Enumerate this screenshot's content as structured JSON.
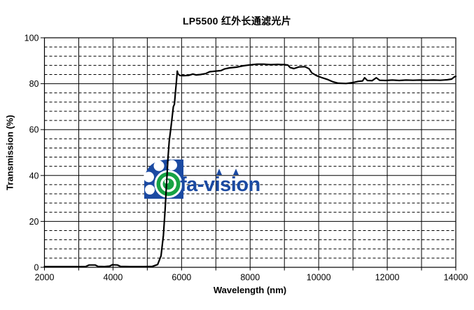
{
  "page": {
    "background": "#ffffff"
  },
  "watermark": {
    "text": "fa-vision",
    "blue": "#1B4AA2",
    "green": "#17A344"
  },
  "chart_data": {
    "type": "line",
    "title": "LP5500 红外长通滤光片",
    "xlabel": "Wavelength (nm)",
    "ylabel": "Transmission (%)",
    "xlim": [
      2000,
      14000
    ],
    "ylim": [
      0,
      100
    ],
    "x_major_ticks": [
      2000,
      4000,
      6000,
      8000,
      10000,
      12000,
      14000
    ],
    "y_major_ticks": [
      0,
      20,
      40,
      60,
      80,
      100
    ],
    "grid": {
      "x_minor_step": 1000,
      "y_minor_step": 4,
      "y_minor_style": "dashed",
      "x_style": "solid",
      "color": "#000000"
    },
    "line_color": "#000000",
    "series": [
      {
        "name": "Transmission",
        "points": [
          [
            2000,
            0.3
          ],
          [
            2500,
            0.3
          ],
          [
            3000,
            0.3
          ],
          [
            3200,
            0.3
          ],
          [
            3300,
            1.0
          ],
          [
            3480,
            1.0
          ],
          [
            3560,
            0.4
          ],
          [
            3750,
            0.3
          ],
          [
            3900,
            0.5
          ],
          [
            3980,
            1.1
          ],
          [
            4130,
            1.0
          ],
          [
            4220,
            0.4
          ],
          [
            4500,
            0.3
          ],
          [
            4900,
            0.3
          ],
          [
            5150,
            0.4
          ],
          [
            5300,
            1.2
          ],
          [
            5400,
            5
          ],
          [
            5470,
            14
          ],
          [
            5520,
            25
          ],
          [
            5560,
            36
          ],
          [
            5600,
            47
          ],
          [
            5640,
            55
          ],
          [
            5690,
            61
          ],
          [
            5730,
            66
          ],
          [
            5760,
            70
          ],
          [
            5790,
            71
          ],
          [
            5820,
            76
          ],
          [
            5850,
            81
          ],
          [
            5875,
            85.5
          ],
          [
            5895,
            84.3
          ],
          [
            5950,
            83.6
          ],
          [
            6050,
            83.5
          ],
          [
            6200,
            83.6
          ],
          [
            6330,
            84.2
          ],
          [
            6420,
            83.8
          ],
          [
            6550,
            84.0
          ],
          [
            6700,
            84.4
          ],
          [
            6820,
            85.2
          ],
          [
            7000,
            85.5
          ],
          [
            7150,
            85.7
          ],
          [
            7250,
            86.4
          ],
          [
            7400,
            86.9
          ],
          [
            7600,
            87.2
          ],
          [
            7800,
            87.8
          ],
          [
            8000,
            88.2
          ],
          [
            8200,
            88.5
          ],
          [
            8400,
            88.5
          ],
          [
            8600,
            88.3
          ],
          [
            8800,
            88.4
          ],
          [
            9000,
            88.3
          ],
          [
            9100,
            88.1
          ],
          [
            9170,
            87.0
          ],
          [
            9280,
            86.6
          ],
          [
            9420,
            87.3
          ],
          [
            9600,
            87.4
          ],
          [
            9720,
            86.5
          ],
          [
            9800,
            84.7
          ],
          [
            9950,
            83.4
          ],
          [
            10100,
            82.6
          ],
          [
            10250,
            81.9
          ],
          [
            10420,
            80.8
          ],
          [
            10570,
            80.2
          ],
          [
            10800,
            80.1
          ],
          [
            11000,
            80.5
          ],
          [
            11150,
            81.0
          ],
          [
            11280,
            81.2
          ],
          [
            11340,
            82.6
          ],
          [
            11420,
            81.4
          ],
          [
            11560,
            81.3
          ],
          [
            11680,
            82.6
          ],
          [
            11780,
            81.5
          ],
          [
            11950,
            81.4
          ],
          [
            12150,
            81.6
          ],
          [
            12350,
            81.4
          ],
          [
            12550,
            81.6
          ],
          [
            12750,
            81.5
          ],
          [
            12950,
            81.6
          ],
          [
            13150,
            81.5
          ],
          [
            13350,
            81.6
          ],
          [
            13550,
            81.5
          ],
          [
            13750,
            81.7
          ],
          [
            13880,
            82.0
          ],
          [
            13960,
            83.0
          ],
          [
            14000,
            83.2
          ]
        ]
      }
    ]
  }
}
